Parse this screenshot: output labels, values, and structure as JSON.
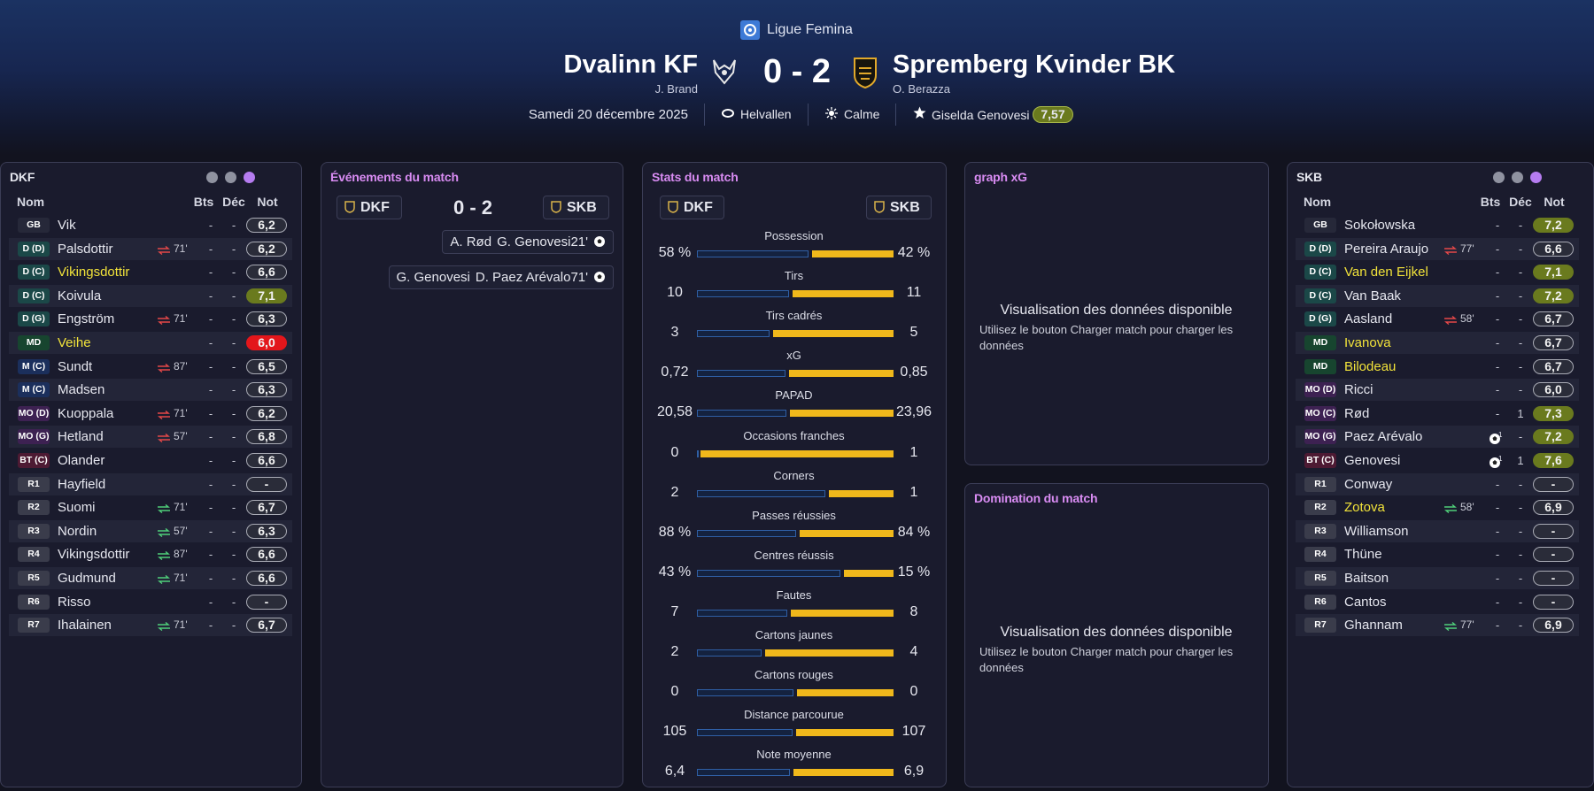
{
  "header": {
    "competition": "Ligue Femina",
    "home_team": "Dvalinn KF",
    "home_coach": "J. Brand",
    "score": "0 - 2",
    "away_team": "Spremberg Kvinder BK",
    "away_coach": "O. Berazza",
    "date": "Samedi 20 décembre 2025",
    "stadium": "Helvallen",
    "weather": "Calme",
    "player_of_match": "Giselda Genovesi",
    "player_of_match_rating": "7,57"
  },
  "home_lineup": {
    "title": "DKF",
    "columns": [
      "Nom",
      "Bts",
      "Déc",
      "Not"
    ],
    "players": [
      {
        "pos": "GB",
        "name": "Vik",
        "goals": "-",
        "assists": "-",
        "rating": "6,2"
      },
      {
        "pos": "D (D)",
        "name": "Palsdottir",
        "sub": "71'",
        "goals": "-",
        "assists": "-",
        "rating": "6,2"
      },
      {
        "pos": "D (C)",
        "name": "Vikingsdottir",
        "name_color": "#f2e33a",
        "goals": "-",
        "assists": "-",
        "rating": "6,6"
      },
      {
        "pos": "D (C)",
        "name": "Koivula",
        "goals": "-",
        "assists": "-",
        "rating": "7,1",
        "rating_color": "#6a7a1e"
      },
      {
        "pos": "D (G)",
        "name": "Engström",
        "sub": "71'",
        "goals": "-",
        "assists": "-",
        "rating": "6,3"
      },
      {
        "pos": "MD",
        "name": "Veihe",
        "name_color": "#f2e33a",
        "goals": "-",
        "assists": "-",
        "rating": "6,0",
        "rating_color": "#e3161b"
      },
      {
        "pos": "M (C)",
        "name": "Sundt",
        "sub": "87'",
        "goals": "-",
        "assists": "-",
        "rating": "6,5"
      },
      {
        "pos": "M (C)",
        "name": "Madsen",
        "goals": "-",
        "assists": "-",
        "rating": "6,3"
      },
      {
        "pos": "MO (D)",
        "name": "Kuoppala",
        "sub": "71'",
        "goals": "-",
        "assists": "-",
        "rating": "6,2"
      },
      {
        "pos": "MO (G)",
        "name": "Hetland",
        "sub": "57'",
        "goals": "-",
        "assists": "-",
        "rating": "6,8"
      },
      {
        "pos": "BT (C)",
        "name": "Olander",
        "goals": "-",
        "assists": "-",
        "rating": "6,6"
      },
      {
        "pos": "R1",
        "name": "Hayfield",
        "goals": "-",
        "assists": "-",
        "rating": "-"
      },
      {
        "pos": "R2",
        "name": "Suomi",
        "sub": "71'",
        "goals": "-",
        "assists": "-",
        "rating": "6,7"
      },
      {
        "pos": "R3",
        "name": "Nordin",
        "sub": "57'",
        "goals": "-",
        "assists": "-",
        "rating": "6,3"
      },
      {
        "pos": "R4",
        "name": "Vikingsdottir",
        "sub": "87'",
        "goals": "-",
        "assists": "-",
        "rating": "6,6"
      },
      {
        "pos": "R5",
        "name": "Gudmund",
        "sub": "71'",
        "goals": "-",
        "assists": "-",
        "rating": "6,6"
      },
      {
        "pos": "R6",
        "name": "Risso",
        "goals": "-",
        "assists": "-",
        "rating": "-"
      },
      {
        "pos": "R7",
        "name": "Ihalainen",
        "sub": "71'",
        "goals": "-",
        "assists": "-",
        "rating": "6,7"
      }
    ]
  },
  "events": {
    "title": "Événements du match",
    "home": "DKF",
    "score": "0 - 2",
    "away": "SKB",
    "items": [
      {
        "assist": "A. Rød",
        "scorer": "G. Genovesi",
        "minute": "21'"
      },
      {
        "assist": "G. Genovesi",
        "scorer": "D. Paez Arévalo",
        "minute": "71'"
      }
    ]
  },
  "stats": {
    "title": "Stats du match",
    "home": "DKF",
    "away": "SKB",
    "items": [
      {
        "label": "Possession",
        "values": [
          58,
          42
        ],
        "value_labels": [
          "58 %",
          "42 %"
        ]
      },
      {
        "label": "Tirs",
        "values": [
          10,
          11
        ]
      },
      {
        "label": "Tirs cadrés",
        "values": [
          3,
          5
        ]
      },
      {
        "label": "xG",
        "values": [
          0.72,
          0.85
        ],
        "value_labels": [
          "0,72",
          "0,85"
        ]
      },
      {
        "label": "PAPAD",
        "values": [
          20.58,
          23.96
        ],
        "value_labels": [
          "20,58",
          "23,96"
        ]
      },
      {
        "label": "Occasions franches",
        "values": [
          0,
          1
        ]
      },
      {
        "label": "Corners",
        "values": [
          2,
          1
        ]
      },
      {
        "label": "Passes réussies",
        "values": [
          88,
          84
        ],
        "value_labels": [
          "88 %",
          "84 %"
        ]
      },
      {
        "label": "Centres réussis",
        "values": [
          43,
          15
        ],
        "value_labels": [
          "43 %",
          "15 %"
        ]
      },
      {
        "label": "Fautes",
        "values": [
          7,
          8
        ]
      },
      {
        "label": "Cartons jaunes",
        "values": [
          2,
          4
        ]
      },
      {
        "label": "Cartons rouges",
        "values": [
          0,
          0
        ]
      },
      {
        "label": "Distance parcourue",
        "values": [
          105,
          107
        ]
      },
      {
        "label": "Note moyenne",
        "values": [
          6.4,
          6.9
        ],
        "value_labels": [
          "6,4",
          "6,9"
        ]
      }
    ]
  },
  "xg_graph": {
    "title": "graph xG",
    "message": "Visualisation des données disponible",
    "hint": "Utilisez le bouton Charger match pour charger les données"
  },
  "domination": {
    "title": "Domination du match",
    "message": "Visualisation des données disponible",
    "hint": "Utilisez le bouton Charger match pour charger les données"
  },
  "away_lineup": {
    "title": "SKB",
    "columns": [
      "Nom",
      "Bts",
      "Déc",
      "Not"
    ],
    "players": [
      {
        "pos": "GB",
        "name": "Sokołowska",
        "goals": "-",
        "assists": "-",
        "rating": "7,2",
        "rating_color": "#6a7a1e"
      },
      {
        "pos": "D (D)",
        "name": "Pereira Araujo",
        "sub": "77'",
        "goals": "-",
        "assists": "-",
        "rating": "6,6"
      },
      {
        "pos": "D (C)",
        "name": "Van den Eijkel",
        "name_color": "#f2e33a",
        "goals": "-",
        "assists": "-",
        "rating": "7,1",
        "rating_color": "#6a7a1e"
      },
      {
        "pos": "D (C)",
        "name": "Van Baak",
        "goals": "-",
        "assists": "-",
        "rating": "7,2",
        "rating_color": "#6a7a1e"
      },
      {
        "pos": "D (G)",
        "name": "Aasland",
        "sub": "58'",
        "goals": "-",
        "assists": "-",
        "rating": "6,7"
      },
      {
        "pos": "MD",
        "name": "Ivanova",
        "name_color": "#f2e33a",
        "goals": "-",
        "assists": "-",
        "rating": "6,7"
      },
      {
        "pos": "MD",
        "name": "Bilodeau",
        "name_color": "#f2e33a",
        "goals": "-",
        "assists": "-",
        "rating": "6,7"
      },
      {
        "pos": "MO (D)",
        "name": "Ricci",
        "goals": "-",
        "assists": "-",
        "rating": "6,0"
      },
      {
        "pos": "MO (C)",
        "name": "Rød",
        "goals": "-",
        "assists": "1",
        "rating": "7,3",
        "rating_color": "#6a7a1e"
      },
      {
        "pos": "MO (G)",
        "name": "Paez Arévalo",
        "goals": 1,
        "assists": "-",
        "rating": "7,2",
        "rating_color": "#6a7a1e"
      },
      {
        "pos": "BT (C)",
        "name": "Genovesi",
        "goals": 1,
        "assists": "1",
        "rating": "7,6",
        "rating_color": "#6a7a1e"
      },
      {
        "pos": "R1",
        "name": "Conway",
        "goals": "-",
        "assists": "-",
        "rating": "-"
      },
      {
        "pos": "R2",
        "name": "Zotova",
        "name_color": "#f2e33a",
        "sub": "58'",
        "goals": "-",
        "assists": "-",
        "rating": "6,9"
      },
      {
        "pos": "R3",
        "name": "Williamson",
        "goals": "-",
        "assists": "-",
        "rating": "-"
      },
      {
        "pos": "R4",
        "name": "Thüne",
        "goals": "-",
        "assists": "-",
        "rating": "-"
      },
      {
        "pos": "R5",
        "name": "Baitson",
        "goals": "-",
        "assists": "-",
        "rating": "-"
      },
      {
        "pos": "R6",
        "name": "Cantos",
        "goals": "-",
        "assists": "-",
        "rating": "-"
      },
      {
        "pos": "R7",
        "name": "Ghannam",
        "sub": "77'",
        "goals": "-",
        "assists": "-",
        "rating": "6,9"
      }
    ]
  }
}
